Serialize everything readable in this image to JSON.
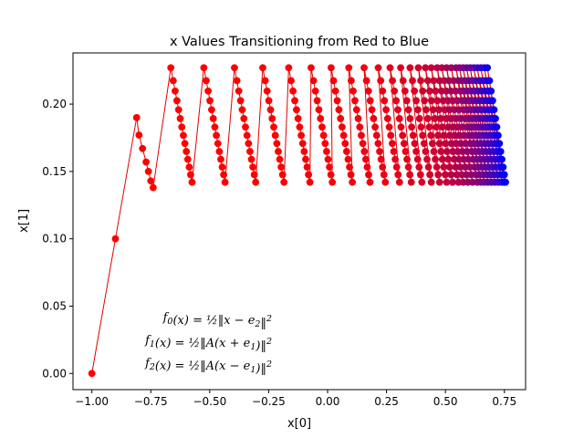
{
  "chart_data": {
    "type": "line",
    "title": "x Values Transitioning from Red to Blue",
    "xlabel": "x[0]",
    "ylabel": "x[1]",
    "xlim": [
      -1.08,
      0.84
    ],
    "ylim": [
      -0.012,
      0.238
    ],
    "x_ticks": [
      -1.0,
      -0.75,
      -0.5,
      -0.25,
      0.0,
      0.25,
      0.5,
      0.75
    ],
    "x_tick_labels": [
      "−1.00",
      "−0.75",
      "−0.50",
      "−0.25",
      "0.00",
      "0.25",
      "0.50",
      "0.75"
    ],
    "y_ticks": [
      0.0,
      0.05,
      0.1,
      0.15,
      0.2
    ],
    "y_tick_labels": [
      "0.00",
      "0.05",
      "0.10",
      "0.15",
      "0.20"
    ],
    "grid": false,
    "line_color": "#e00000",
    "color_start": "#ff0000",
    "color_end": "#0000ff",
    "marker": "circle",
    "points_initial": [
      [
        -1.0,
        0.0
      ],
      [
        -0.9,
        0.1
      ],
      [
        -0.81,
        0.19
      ],
      [
        -0.8,
        0.177
      ],
      [
        -0.785,
        0.167
      ],
      [
        -0.77,
        0.157
      ],
      [
        -0.76,
        0.15
      ],
      [
        -0.75,
        0.143
      ],
      [
        -0.74,
        0.138
      ]
    ],
    "sweeps": [
      {
        "x_top": -0.665,
        "x_bottom": -0.575
      },
      {
        "x_top": -0.525,
        "x_bottom": -0.435
      },
      {
        "x_top": -0.395,
        "x_bottom": -0.305
      },
      {
        "x_top": -0.275,
        "x_bottom": -0.185
      },
      {
        "x_top": -0.165,
        "x_bottom": -0.075
      },
      {
        "x_top": -0.07,
        "x_bottom": 0.02
      },
      {
        "x_top": 0.015,
        "x_bottom": 0.105
      },
      {
        "x_top": 0.09,
        "x_bottom": 0.18
      },
      {
        "x_top": 0.155,
        "x_bottom": 0.245
      },
      {
        "x_top": 0.215,
        "x_bottom": 0.305
      },
      {
        "x_top": 0.265,
        "x_bottom": 0.355
      },
      {
        "x_top": 0.31,
        "x_bottom": 0.4
      },
      {
        "x_top": 0.35,
        "x_bottom": 0.44
      },
      {
        "x_top": 0.385,
        "x_bottom": 0.475
      },
      {
        "x_top": 0.415,
        "x_bottom": 0.505
      },
      {
        "x_top": 0.44,
        "x_bottom": 0.53
      },
      {
        "x_top": 0.465,
        "x_bottom": 0.555
      },
      {
        "x_top": 0.485,
        "x_bottom": 0.575
      },
      {
        "x_top": 0.505,
        "x_bottom": 0.595
      },
      {
        "x_top": 0.525,
        "x_bottom": 0.615
      },
      {
        "x_top": 0.545,
        "x_bottom": 0.635
      },
      {
        "x_top": 0.56,
        "x_bottom": 0.65
      },
      {
        "x_top": 0.575,
        "x_bottom": 0.665
      },
      {
        "x_top": 0.59,
        "x_bottom": 0.68
      },
      {
        "x_top": 0.605,
        "x_bottom": 0.695
      },
      {
        "x_top": 0.62,
        "x_bottom": 0.71
      },
      {
        "x_top": 0.635,
        "x_bottom": 0.725
      },
      {
        "x_top": 0.65,
        "x_bottom": 0.74
      },
      {
        "x_top": 0.665,
        "x_bottom": 0.75
      },
      {
        "x_top": 0.678,
        "x_bottom": 0.755
      }
    ],
    "sweep_y_top": 0.227,
    "sweep_y_bottom": 0.142,
    "points_per_sweep": 14,
    "annotations": [
      {
        "fn": "f",
        "sub": "0",
        "arg": "(x) = ",
        "frac": "½",
        "body": "‖x − e",
        "body_sub": "2",
        "tail": "‖",
        "sup": "2"
      },
      {
        "fn": "f",
        "sub": "1",
        "arg": "(x) = ",
        "frac": "½",
        "body": "‖A(x + e",
        "body_sub": "1",
        "tail": ")‖",
        "sup": "2"
      },
      {
        "fn": "f",
        "sub": "2",
        "arg": "(x) = ",
        "frac": "½",
        "body": "‖A(x − e",
        "body_sub": "1",
        "tail": ")‖",
        "sup": "2"
      }
    ]
  }
}
